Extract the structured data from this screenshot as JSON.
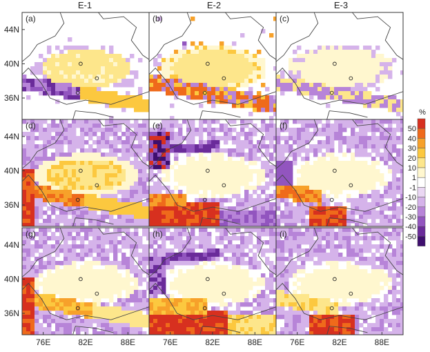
{
  "chart_data": {
    "type": "heatmap",
    "columns": [
      "E-1",
      "E-2",
      "E-3"
    ],
    "panels": [
      {
        "label": "(a)",
        "row": 0,
        "col": 0
      },
      {
        "label": "(b)",
        "row": 0,
        "col": 1
      },
      {
        "label": "(c)",
        "row": 0,
        "col": 2
      },
      {
        "label": "(d)",
        "row": 1,
        "col": 0
      },
      {
        "label": "(e)",
        "row": 1,
        "col": 1
      },
      {
        "label": "(f)",
        "row": 1,
        "col": 2
      },
      {
        "label": "(g)",
        "row": 2,
        "col": 0
      },
      {
        "label": "(h)",
        "row": 2,
        "col": 1
      },
      {
        "label": "(i)",
        "row": 2,
        "col": 2
      }
    ],
    "xticks": [
      "76E",
      "82E",
      "88E"
    ],
    "xtick_values": [
      76,
      82,
      88
    ],
    "yticks": [
      "44N",
      "40N",
      "36N"
    ],
    "ytick_values": [
      44,
      40,
      36
    ],
    "xlim": [
      73,
      91
    ],
    "ylim": [
      33.5,
      46
    ],
    "colorbar": {
      "unit": "%",
      "tick_labels": [
        "50",
        "40",
        "30",
        "20",
        "10",
        "1",
        "-1",
        "-10",
        "-20",
        "-30",
        "-40",
        "-50"
      ],
      "bins": [
        {
          "color": "#d7301f"
        },
        {
          "color": "#ef6a1b"
        },
        {
          "color": "#f7a12a"
        },
        {
          "color": "#fcc83f"
        },
        {
          "color": "#fde68b"
        },
        {
          "color": "#fff7cf"
        },
        {
          "color": "#ffffff"
        },
        {
          "color": "#ead7f3"
        },
        {
          "color": "#d5b3ea"
        },
        {
          "color": "#b784d8"
        },
        {
          "color": "#9255bf"
        },
        {
          "color": "#6a2b9a"
        },
        {
          "color": "#3f0f6e"
        }
      ]
    },
    "stations_lonlat": [
      [
        81.3,
        40.0
      ],
      [
        83.6,
        38.3
      ],
      [
        80.9,
        36.6
      ]
    ]
  }
}
